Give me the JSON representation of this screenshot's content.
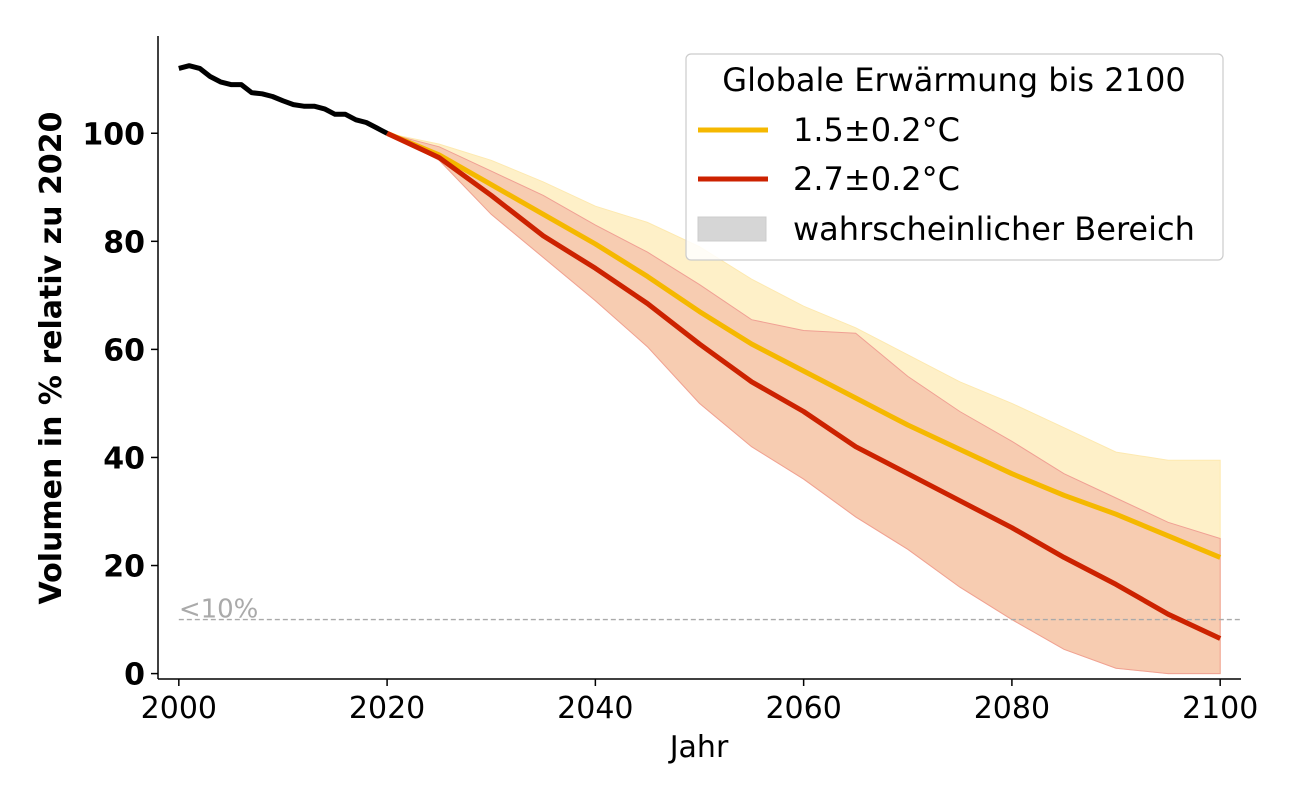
{
  "chart_data": {
    "type": "line",
    "title": "",
    "xlabel": "Jahr",
    "ylabel": "Volumen in % relativ zu 2020",
    "xlim": [
      1998,
      2102
    ],
    "ylim": [
      -1,
      118
    ],
    "x_ticks": [
      2000,
      2020,
      2040,
      2060,
      2080,
      2100
    ],
    "y_ticks": [
      0,
      20,
      40,
      60,
      80,
      100
    ],
    "grid": false,
    "legend": {
      "title": "Globale Erwärmung bis 2100",
      "placement": "top-right",
      "entries": [
        "1.5±0.2°C",
        "2.7±0.2°C",
        "wahrscheinlicher Bereich"
      ]
    },
    "threshold": {
      "y": 10,
      "label": "<10%",
      "color": "#aaaaaa"
    },
    "colors": {
      "historical": "#000000",
      "low": "#f5b800",
      "high": "#cc2200",
      "low_band": "#fde9b0",
      "high_band": "#f0a094",
      "legend_band": "#d6d6d6"
    },
    "series": [
      {
        "name": "",
        "role": "historical",
        "x": [
          2000,
          2001,
          2002,
          2003,
          2004,
          2005,
          2006,
          2007,
          2008,
          2009,
          2010,
          2011,
          2012,
          2013,
          2014,
          2015,
          2016,
          2017,
          2018,
          2019,
          2020
        ],
        "values": [
          112,
          112.5,
          112,
          110.5,
          109.5,
          109,
          109,
          107.5,
          107.3,
          106.8,
          106,
          105.3,
          105,
          105,
          104.5,
          103.5,
          103.5,
          102.5,
          102,
          101,
          100
        ]
      },
      {
        "name": "1.5±0.2°C",
        "role": "low",
        "x": [
          2020,
          2025,
          2030,
          2035,
          2040,
          2045,
          2050,
          2055,
          2060,
          2065,
          2070,
          2075,
          2080,
          2085,
          2090,
          2095,
          2100
        ],
        "values": [
          100,
          96,
          90.5,
          85,
          79.5,
          73.5,
          67,
          61,
          56,
          51,
          46,
          41.5,
          37,
          33,
          29.5,
          25.5,
          21.5
        ],
        "band_upper": [
          100,
          98,
          95,
          91,
          86.5,
          83.5,
          79,
          73,
          68,
          64,
          59,
          54,
          50,
          45.5,
          41,
          39.5,
          39.5
        ],
        "band_lower": [
          100,
          95,
          85,
          77,
          69,
          60.5,
          50,
          42,
          36,
          29,
          23,
          16,
          10,
          4.5,
          1,
          0,
          0
        ]
      },
      {
        "name": "2.7±0.2°C",
        "role": "high",
        "x": [
          2020,
          2025,
          2030,
          2035,
          2040,
          2045,
          2050,
          2055,
          2060,
          2065,
          2070,
          2075,
          2080,
          2085,
          2090,
          2095,
          2100
        ],
        "values": [
          100,
          95.5,
          88.5,
          81,
          75,
          68.5,
          61,
          54,
          48.5,
          42,
          37,
          32,
          27,
          21.5,
          16.5,
          11,
          6.5
        ],
        "band_upper": [
          100,
          97.5,
          93,
          88.5,
          83,
          78,
          72,
          65.5,
          63.5,
          63,
          55,
          48.5,
          43,
          37,
          32.5,
          28,
          25
        ],
        "band_lower": [
          100,
          95,
          85,
          77,
          69,
          60.5,
          50,
          42,
          36,
          29,
          23,
          16,
          10,
          4.5,
          1,
          0,
          0
        ]
      }
    ]
  }
}
